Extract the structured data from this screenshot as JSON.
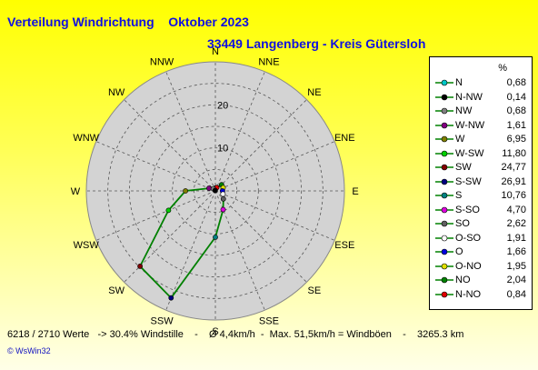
{
  "title": "Verteilung Windrichtung    Oktober 2023",
  "subtitle": "33449 Langenberg - Kreis Gütersloh",
  "footer": "6218 / 2710 Werte   -> 30.4% Windstille    -    Ø 4,4km/h  -  Max. 51,5km/h = Windböen    -    3265.3 km",
  "credit": "© WsWin32",
  "legend_header": "%",
  "chart_data": {
    "type": "radar",
    "title": "Verteilung Windrichtung    Oktober 2023",
    "directions": [
      "N",
      "NNE",
      "NE",
      "ENE",
      "E",
      "ESE",
      "SE",
      "SSE",
      "S",
      "SSW",
      "SW",
      "WSW",
      "W",
      "WNW",
      "NW",
      "NNW"
    ],
    "radial_ticks": [
      "10",
      "20"
    ],
    "rmax": 30,
    "ring_step": 5,
    "series": [
      {
        "values": [
          0.68,
          0.84,
          2.04,
          1.95,
          1.66,
          1.91,
          2.62,
          4.7,
          10.76,
          26.91,
          24.77,
          11.8,
          6.95,
          1.61,
          0.68,
          0.14
        ]
      }
    ],
    "grid": true,
    "legend_position": "right"
  },
  "legend": [
    {
      "name": "N",
      "value": "0,68",
      "color": "#00c8c8"
    },
    {
      "name": "N-NW",
      "value": "0,14",
      "color": "#000000"
    },
    {
      "name": "NW",
      "value": "0,68",
      "color": "#808080"
    },
    {
      "name": "W-NW",
      "value": "1,61",
      "color": "#800080"
    },
    {
      "name": "W",
      "value": "6,95",
      "color": "#808000"
    },
    {
      "name": "W-SW",
      "value": "11,80",
      "color": "#00d000"
    },
    {
      "name": "SW",
      "value": "24,77",
      "color": "#800000"
    },
    {
      "name": "S-SW",
      "value": "26,91",
      "color": "#000080"
    },
    {
      "name": "S",
      "value": "10,76",
      "color": "#008080"
    },
    {
      "name": "S-SO",
      "value": "4,70",
      "color": "#e000e0"
    },
    {
      "name": "SO",
      "value": "2,62",
      "color": "#606060"
    },
    {
      "name": "O-SO",
      "value": "1,91",
      "color": "#ffffff"
    },
    {
      "name": "O",
      "value": "1,66",
      "color": "#0000e0"
    },
    {
      "name": "O-NO",
      "value": "1,95",
      "color": "#e0e000"
    },
    {
      "name": "NO",
      "value": "2,04",
      "color": "#008000"
    },
    {
      "name": "N-NO",
      "value": "0,84",
      "color": "#e00000"
    }
  ]
}
